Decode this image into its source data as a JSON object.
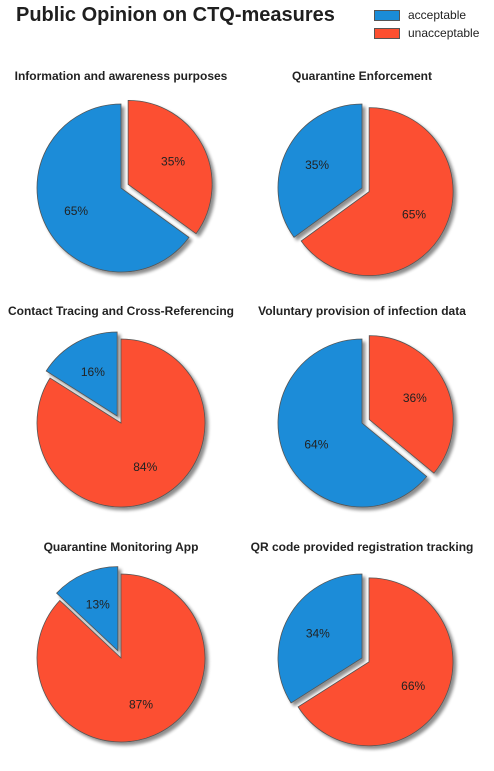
{
  "title": "Public Opinion on CTQ-measures",
  "legend": [
    {
      "label": "acceptable",
      "color": "#1a8cd8"
    },
    {
      "label": "unacceptable",
      "color": "#fc4f30"
    }
  ],
  "chart_data": [
    {
      "type": "pie",
      "title": "Information and awareness purposes",
      "labels": [
        "acceptable",
        "unacceptable"
      ],
      "values": [
        65,
        35
      ],
      "value_labels": [
        "65%",
        "35%"
      ],
      "explode": "unacceptable"
    },
    {
      "type": "pie",
      "title": "Quarantine Enforcement",
      "labels": [
        "acceptable",
        "unacceptable"
      ],
      "values": [
        35,
        65
      ],
      "value_labels": [
        "35%",
        "65%"
      ],
      "explode": "unacceptable"
    },
    {
      "type": "pie",
      "title": "Contact Tracing and Cross-Referencing",
      "labels": [
        "acceptable",
        "unacceptable"
      ],
      "values": [
        16,
        84
      ],
      "value_labels": [
        "16%",
        "84%"
      ],
      "explode": "acceptable"
    },
    {
      "type": "pie",
      "title": "Voluntary provision of infection data",
      "labels": [
        "acceptable",
        "unacceptable"
      ],
      "values": [
        64,
        36
      ],
      "value_labels": [
        "64%",
        "36%"
      ],
      "explode": "unacceptable"
    },
    {
      "type": "pie",
      "title": "Quarantine Monitoring App",
      "labels": [
        "acceptable",
        "unacceptable"
      ],
      "values": [
        13,
        87
      ],
      "value_labels": [
        "13%",
        "87%"
      ],
      "explode": "acceptable"
    },
    {
      "type": "pie",
      "title": "QR code provided registration tracking",
      "labels": [
        "acceptable",
        "unacceptable"
      ],
      "values": [
        34,
        66
      ],
      "value_labels": [
        "34%",
        "66%"
      ],
      "explode": "unacceptable"
    }
  ]
}
